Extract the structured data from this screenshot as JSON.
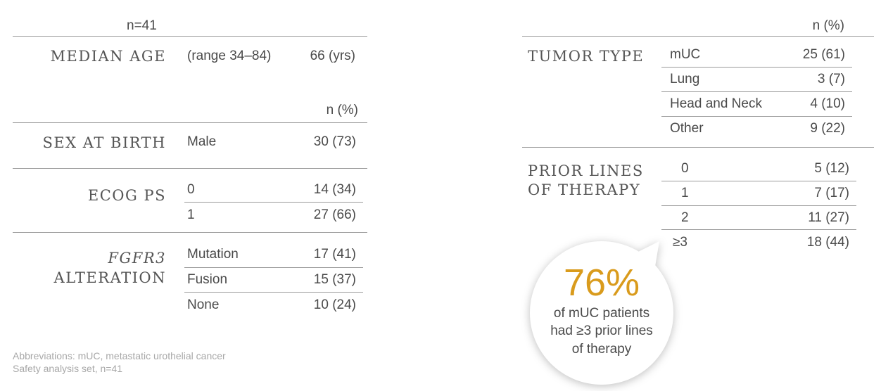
{
  "left": {
    "n_label": "n=41",
    "median_age": {
      "label": "MEDIAN AGE",
      "range": "(range 34–84)",
      "value": "66 (yrs)"
    },
    "column_header": "n (%)",
    "sex_at_birth": {
      "label": "SEX AT BIRTH",
      "rows": [
        [
          "Male",
          "30 (73)"
        ]
      ]
    },
    "ecog_ps": {
      "label": "ECOG PS",
      "rows": [
        [
          "0",
          "14 (34)"
        ],
        [
          "1",
          "27 (66)"
        ]
      ]
    },
    "fgfr3_alteration": {
      "label_gene": "FGFR3",
      "label": "ALTERATION",
      "rows": [
        [
          "Mutation",
          "17 (41)"
        ],
        [
          "Fusion",
          "15 (37)"
        ],
        [
          "None",
          "10 (24)"
        ]
      ]
    }
  },
  "right": {
    "column_header": "n (%)",
    "tumor_type": {
      "label": "TUMOR TYPE",
      "rows": [
        [
          "mUC",
          "25 (61)"
        ],
        [
          "Lung",
          "3 (7)"
        ],
        [
          "Head and Neck",
          "4 (10)"
        ],
        [
          "Other",
          "9 (22)"
        ]
      ]
    },
    "prior_lines": {
      "label_lines": [
        "PRIOR LINES",
        "OF THERAPY"
      ],
      "rows": [
        [
          "0",
          "5 (12)"
        ],
        [
          "1",
          "7 (17)"
        ],
        [
          "2",
          "11 (27)"
        ],
        [
          "≥3",
          "18 (44)"
        ]
      ]
    }
  },
  "callout": {
    "value": "76%",
    "lines": [
      "of mUC patients",
      "had ≥3 prior lines",
      "of therapy"
    ]
  },
  "footnotes": [
    "Abbreviations: mUC, metastatic urothelial cancer",
    "Safety analysis set, n=41"
  ]
}
